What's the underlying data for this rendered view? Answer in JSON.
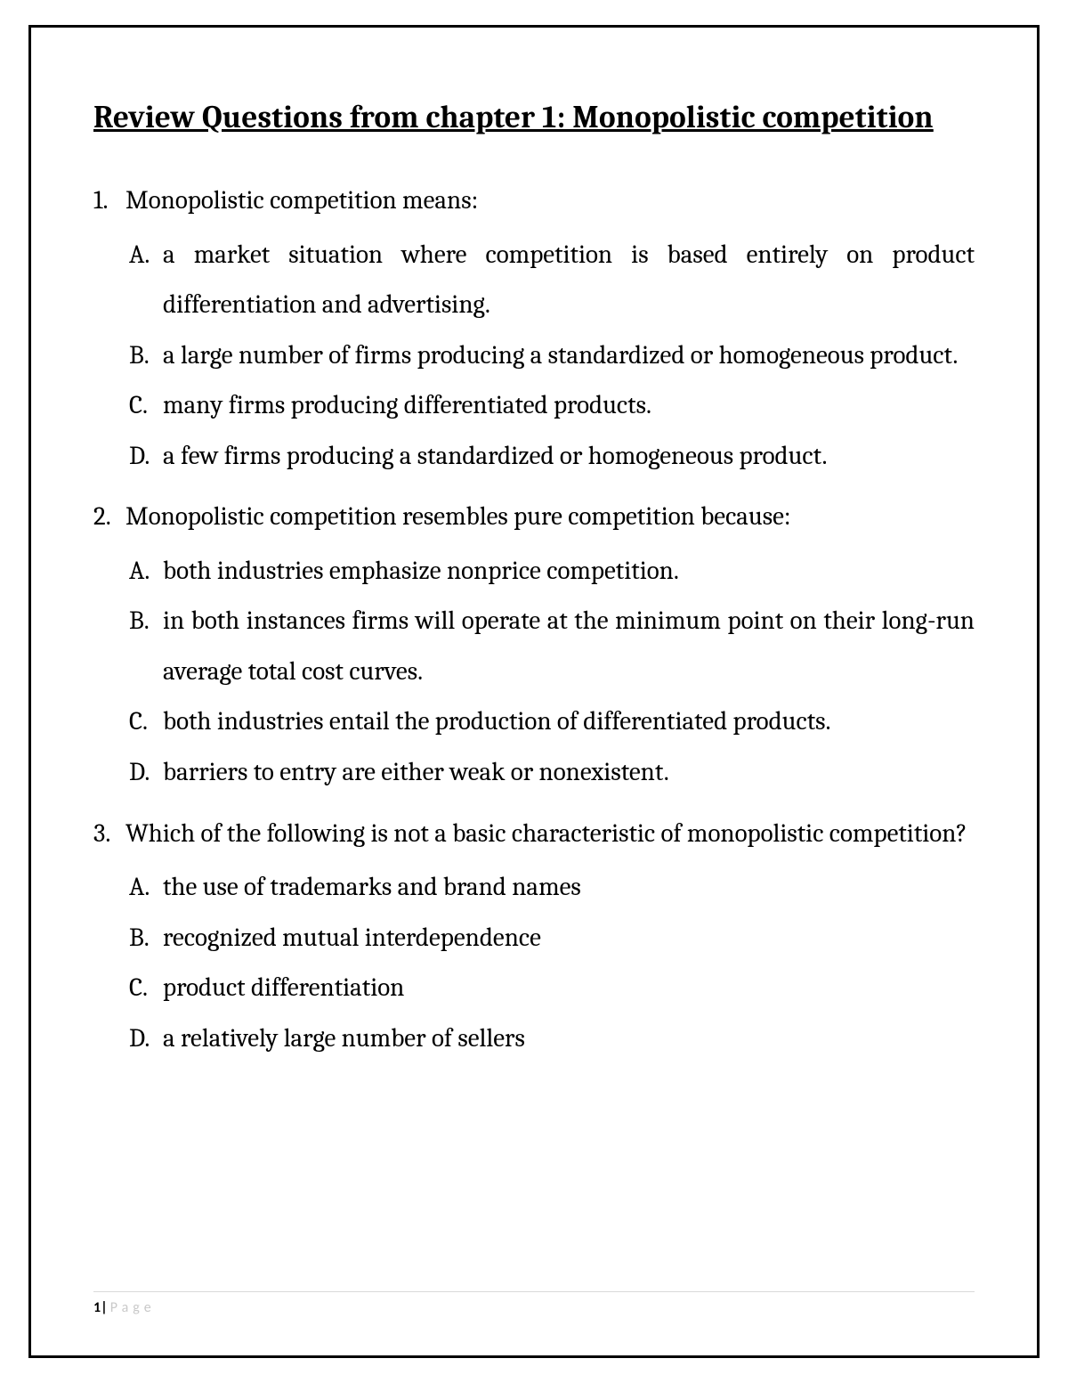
{
  "title": "Review Questions from chapter 1: Monopolistic competition",
  "questions": [
    {
      "num": "1.",
      "text": "Monopolistic competition means:",
      "answers": [
        {
          "letter": "A.",
          "text": "a market situation where competition is based entirely on product differentiation and advertising."
        },
        {
          "letter": "B.",
          "text": "a large number of firms producing a standardized or homogeneous product."
        },
        {
          "letter": "C.",
          "text": "many firms producing differentiated products."
        },
        {
          "letter": "D.",
          "text": "a few firms producing a standardized or homogeneous product."
        }
      ]
    },
    {
      "num": "2.",
      "text": "Monopolistic competition resembles pure competition because:",
      "answers": [
        {
          "letter": "A.",
          "text": "both industries emphasize nonprice competition."
        },
        {
          "letter": "B.",
          "text": "in both instances firms will operate at the minimum point on their long-run average total cost curves."
        },
        {
          "letter": "C.",
          "text": "both industries entail the production of differentiated products."
        },
        {
          "letter": "D.",
          "text": "barriers to entry are either weak or nonexistent."
        }
      ]
    },
    {
      "num": "3.",
      "text": "Which of the following is not a basic characteristic of monopolistic competition?",
      "answers": [
        {
          "letter": "A.",
          "text": "the use of trademarks and brand names"
        },
        {
          "letter": "B.",
          "text": "recognized mutual interdependence"
        },
        {
          "letter": "C.",
          "text": "product differentiation"
        },
        {
          "letter": "D.",
          "text": "a relatively large number of sellers"
        }
      ]
    }
  ],
  "footer": {
    "page_num": "1",
    "pipe": "|",
    "page_word": "Page"
  }
}
